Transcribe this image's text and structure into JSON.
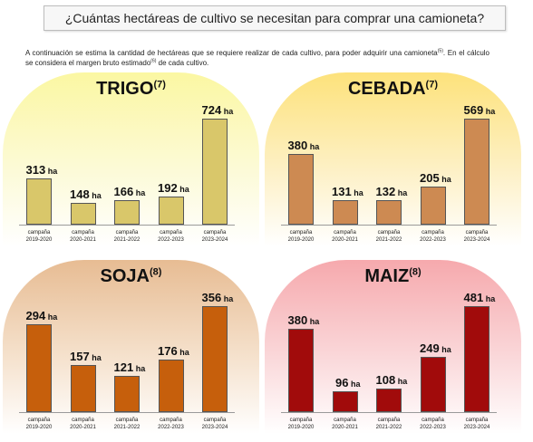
{
  "header": {
    "title": "¿Cuántas hectáreas de cultivo se necesitan para comprar una camioneta?",
    "intro_a": "A continuación se estima la cantidad de hectáreas que se requiere realizar de cada cultivo, para poder adquirir una camioneta",
    "intro_ref1": "(5)",
    "intro_b": ". En el cálculo se considera el margen bruto estimado",
    "intro_ref2": "(6)",
    "intro_c": " de cada cultivo."
  },
  "unit": "ha",
  "chart_data": [
    {
      "type": "bar",
      "title": "TRIGO",
      "title_ref": "(7)",
      "color": "#d9c76a",
      "categories": [
        [
          "campaña",
          "2019-2020"
        ],
        [
          "campaña",
          "2020-2021"
        ],
        [
          "campaña",
          "2021-2022"
        ],
        [
          "campaña",
          "2022-2023"
        ],
        [
          "campaña",
          "2023-2024"
        ]
      ],
      "values": [
        313,
        148,
        166,
        192,
        724
      ],
      "ylim": [
        0,
        724
      ]
    },
    {
      "type": "bar",
      "title": "CEBADA",
      "title_ref": "(7)",
      "color": "#cd8a52",
      "categories": [
        [
          "campaña",
          "2019-2020"
        ],
        [
          "campaña",
          "2020-2021"
        ],
        [
          "campaña",
          "2021-2022"
        ],
        [
          "campaña",
          "2022-2023"
        ],
        [
          "campaña",
          "2023-2024"
        ]
      ],
      "values": [
        380,
        131,
        132,
        205,
        569
      ],
      "ylim": [
        0,
        569
      ]
    },
    {
      "type": "bar",
      "title": "SOJA",
      "title_ref": "(8)",
      "color": "#c65f0c",
      "categories": [
        [
          "campaña",
          "2019-2020"
        ],
        [
          "campaña",
          "2020-2021"
        ],
        [
          "campaña",
          "2021-2022"
        ],
        [
          "campaña",
          "2022-2023"
        ],
        [
          "campaña",
          "2023-2024"
        ]
      ],
      "values": [
        294,
        157,
        121,
        176,
        356
      ],
      "ylim": [
        0,
        356
      ]
    },
    {
      "type": "bar",
      "title": "MAIZ",
      "title_ref": "(8)",
      "color": "#a10b0b",
      "categories": [
        [
          "campaña",
          "2019-2020"
        ],
        [
          "campaña",
          "2020-2021"
        ],
        [
          "campaña",
          "2021-2022"
        ],
        [
          "campaña",
          "2022-2023"
        ],
        [
          "campaña",
          "2023-2024"
        ]
      ],
      "values": [
        380,
        96,
        108,
        249,
        481
      ],
      "ylim": [
        0,
        481
      ]
    }
  ]
}
